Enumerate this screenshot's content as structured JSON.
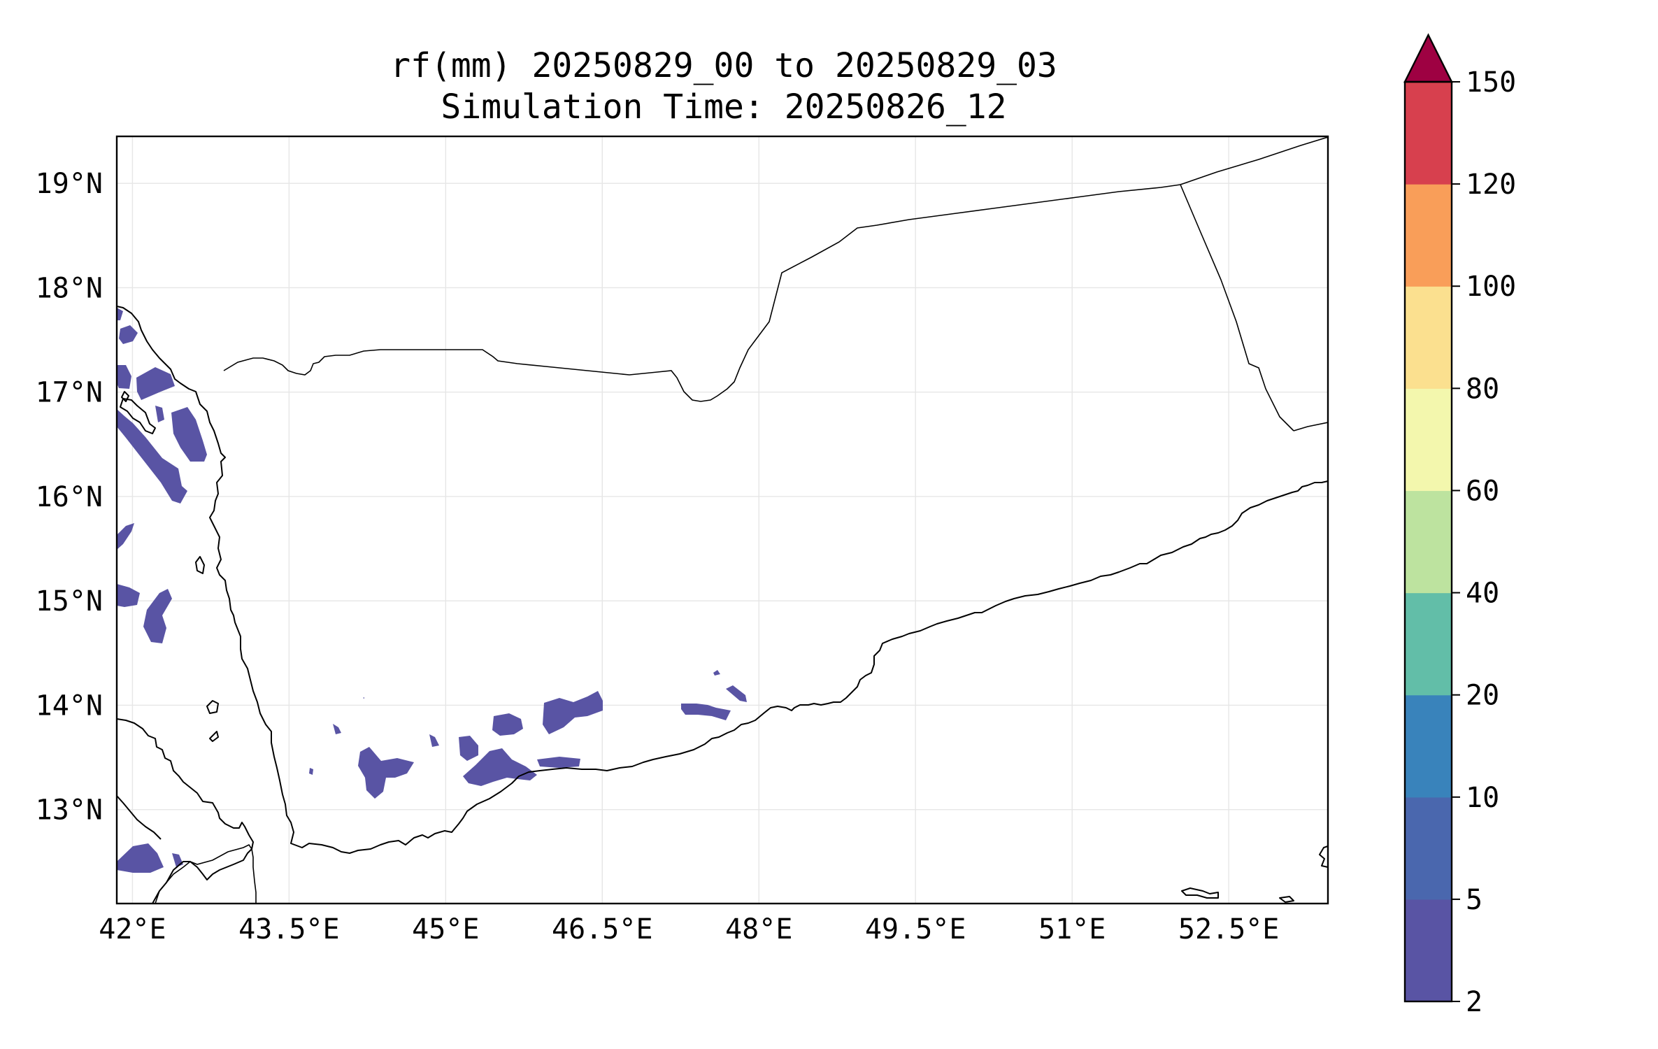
{
  "map": {
    "title_line1": "rf(mm) 20250829_00 to 20250829_03",
    "title_line2": "Simulation Time: 20250826_12",
    "extent": {
      "lon": [
        41.85,
        53.45
      ],
      "lat": [
        12.1,
        19.45
      ]
    },
    "lon_ticks": [
      42,
      43.5,
      45,
      46.5,
      48,
      49.5,
      51,
      52.5
    ],
    "lat_ticks": [
      13,
      14,
      15,
      16,
      17,
      18,
      19
    ],
    "lon_labels": [
      "42°E",
      "43.5°E",
      "45°E",
      "46.5°E",
      "48°E",
      "49.5°E",
      "51°E",
      "52.5°E"
    ],
    "lat_labels": [
      "13°N",
      "14°N",
      "15°N",
      "16°N",
      "17°N",
      "18°N",
      "19°N"
    ],
    "gridlines": true
  },
  "colorbar": {
    "levels": [
      "2",
      "5",
      "10",
      "20",
      "40",
      "60",
      "80",
      "100",
      "120",
      "150"
    ],
    "colors": [
      "#5954a4",
      "#4a67ae",
      "#3983bb",
      "#62bea8",
      "#bde39f",
      "#f3f7ad",
      "#fbe08f",
      "#f99e59",
      "#d7404e",
      "#9e0142"
    ],
    "extend": "max"
  },
  "colors": {
    "rain_2_5": "#5954a4",
    "coastline": "#000000",
    "grid": "#e6e6e6"
  }
}
